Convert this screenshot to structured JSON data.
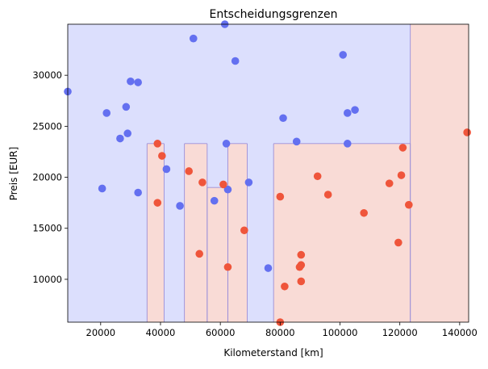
{
  "chart_data": {
    "type": "scatter",
    "title": "Entscheidungsgrenzen",
    "xlabel": "Kilometerstand [km]",
    "ylabel": "Preis [EUR]",
    "xlim": [
      9000,
      143000
    ],
    "ylim": [
      5800,
      35000
    ],
    "xticks": [
      20000,
      40000,
      60000,
      80000,
      100000,
      120000,
      140000
    ],
    "yticks": [
      10000,
      15000,
      20000,
      25000,
      30000
    ],
    "grid": false,
    "legend": "none",
    "colors": {
      "blue_point": "#6470f0",
      "red_point": "#ef553b",
      "blue_region": "#dcdffd",
      "red_region": "#f9dbd6",
      "boundary": "#9b8ed8"
    },
    "regions": [
      {
        "class": "red",
        "x": [
          35500,
          41200
        ],
        "y": [
          5800,
          23300
        ]
      },
      {
        "class": "red",
        "x": [
          48000,
          55600
        ],
        "y": [
          5800,
          23300
        ]
      },
      {
        "class": "red",
        "x": [
          55600,
          62500
        ],
        "y": [
          5800,
          19000
        ]
      },
      {
        "class": "red",
        "x": [
          62500,
          69000
        ],
        "y": [
          5800,
          23300
        ]
      },
      {
        "class": "red",
        "x": [
          77800,
          123500
        ],
        "y": [
          5800,
          23300
        ]
      },
      {
        "class": "red",
        "x": [
          123500,
          143000
        ],
        "y": [
          5800,
          35000
        ]
      }
    ],
    "series": [
      {
        "class": "blue",
        "points": [
          [
            9000,
            28400
          ],
          [
            20500,
            18900
          ],
          [
            22000,
            26300
          ],
          [
            26500,
            23800
          ],
          [
            28500,
            26900
          ],
          [
            29000,
            24300
          ],
          [
            30000,
            29400
          ],
          [
            32500,
            29300
          ],
          [
            32500,
            18500
          ],
          [
            42000,
            20800
          ],
          [
            46500,
            17200
          ],
          [
            51000,
            33600
          ],
          [
            58000,
            17700
          ],
          [
            61500,
            35000
          ],
          [
            62000,
            23300
          ],
          [
            62500,
            18800
          ],
          [
            65000,
            31400
          ],
          [
            69500,
            19500
          ],
          [
            76000,
            11100
          ],
          [
            81000,
            25800
          ],
          [
            85500,
            23500
          ],
          [
            101000,
            32000
          ],
          [
            102500,
            26300
          ],
          [
            102500,
            23300
          ],
          [
            105000,
            26600
          ]
        ]
      },
      {
        "class": "red",
        "points": [
          [
            39000,
            23300
          ],
          [
            40500,
            22100
          ],
          [
            39000,
            17500
          ],
          [
            49500,
            20600
          ],
          [
            53000,
            12500
          ],
          [
            54000,
            19500
          ],
          [
            61000,
            19300
          ],
          [
            62500,
            11200
          ],
          [
            68000,
            14800
          ],
          [
            80000,
            5800
          ],
          [
            80000,
            18100
          ],
          [
            81500,
            9300
          ],
          [
            86500,
            11200
          ],
          [
            87000,
            11400
          ],
          [
            87000,
            12400
          ],
          [
            87000,
            9800
          ],
          [
            92500,
            20100
          ],
          [
            96000,
            18300
          ],
          [
            108000,
            16500
          ],
          [
            116500,
            19400
          ],
          [
            119500,
            13600
          ],
          [
            120500,
            20200
          ],
          [
            121000,
            22900
          ],
          [
            123000,
            17300
          ],
          [
            142500,
            24400
          ]
        ]
      }
    ]
  }
}
